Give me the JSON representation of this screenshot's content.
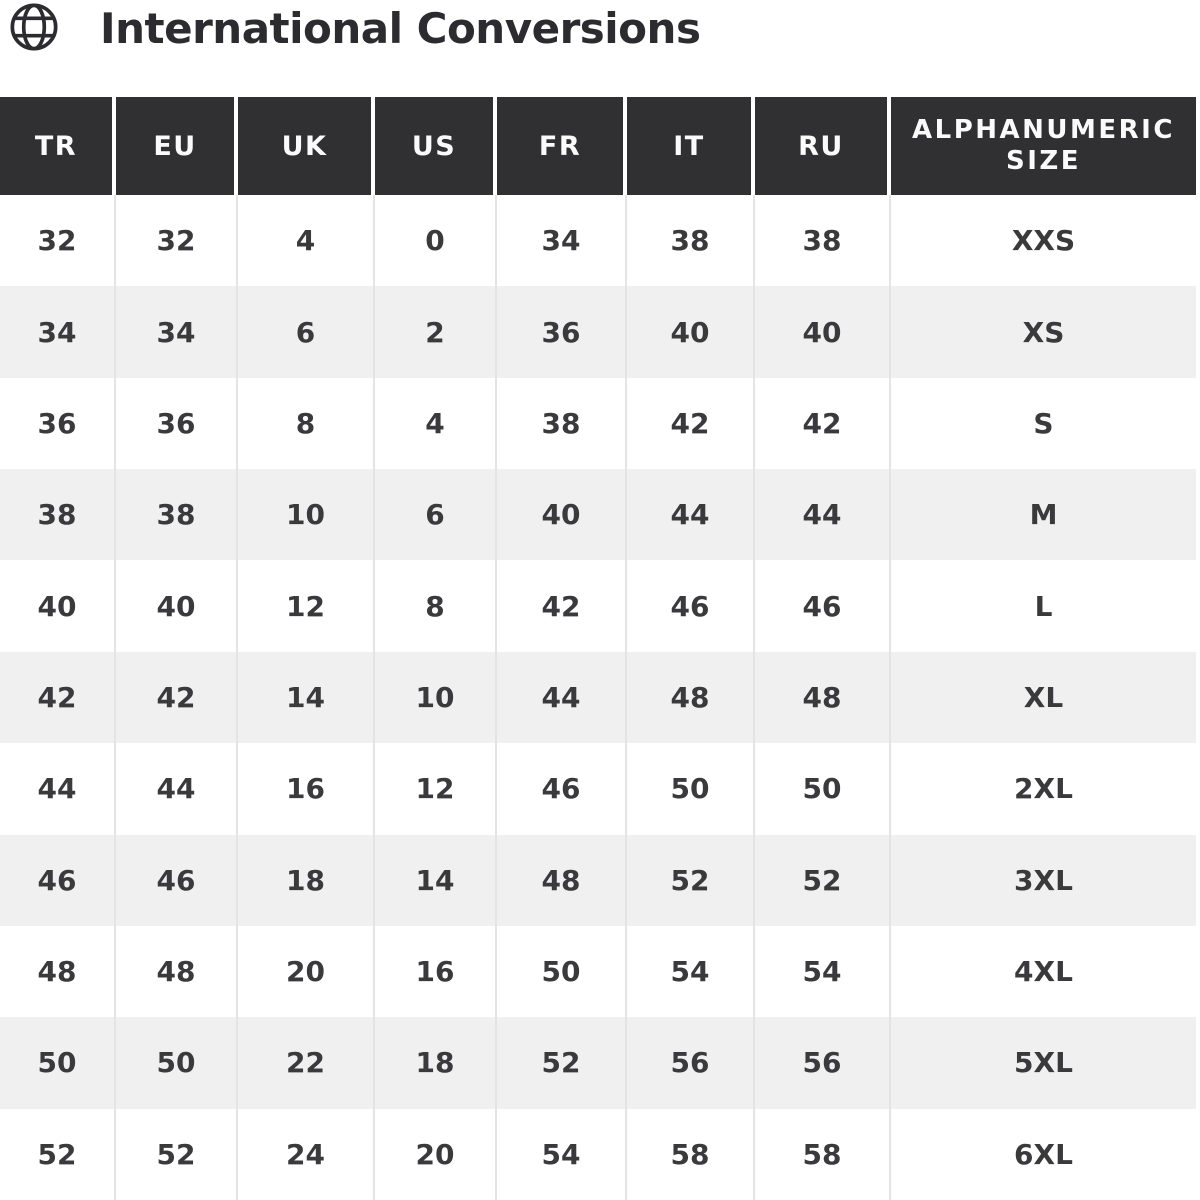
{
  "header": {
    "icon": "globe-icon",
    "title": "International Conversions"
  },
  "colors": {
    "header_bg": "#303032",
    "header_text": "#fafafa",
    "body_text": "#3a3a3c",
    "row_bg": "#ffffff",
    "row_alt_bg": "#f0f0f0",
    "separator": "#e4e4e4",
    "title_text": "#2c2c30"
  },
  "chart_data": {
    "type": "table",
    "title": "International Conversions",
    "columns": [
      "TR",
      "EU",
      "UK",
      "US",
      "FR",
      "IT",
      "RU",
      "ALPHANUMERIC SIZE"
    ],
    "rows": [
      [
        "32",
        "32",
        "4",
        "0",
        "34",
        "38",
        "38",
        "XXS"
      ],
      [
        "34",
        "34",
        "6",
        "2",
        "36",
        "40",
        "40",
        "XS"
      ],
      [
        "36",
        "36",
        "8",
        "4",
        "38",
        "42",
        "42",
        "S"
      ],
      [
        "38",
        "38",
        "10",
        "6",
        "40",
        "44",
        "44",
        "M"
      ],
      [
        "40",
        "40",
        "12",
        "8",
        "42",
        "46",
        "46",
        "L"
      ],
      [
        "42",
        "42",
        "14",
        "10",
        "44",
        "48",
        "48",
        "XL"
      ],
      [
        "44",
        "44",
        "16",
        "12",
        "46",
        "50",
        "50",
        "2XL"
      ],
      [
        "46",
        "46",
        "18",
        "14",
        "48",
        "52",
        "52",
        "3XL"
      ],
      [
        "48",
        "48",
        "20",
        "16",
        "50",
        "54",
        "54",
        "4XL"
      ],
      [
        "50",
        "50",
        "22",
        "18",
        "52",
        "56",
        "56",
        "5XL"
      ],
      [
        "52",
        "52",
        "24",
        "20",
        "54",
        "58",
        "58",
        "6XL"
      ]
    ],
    "layout": {
      "striped": true,
      "header_style": "dark",
      "legend": "none",
      "grid": "vertical-separators"
    }
  }
}
